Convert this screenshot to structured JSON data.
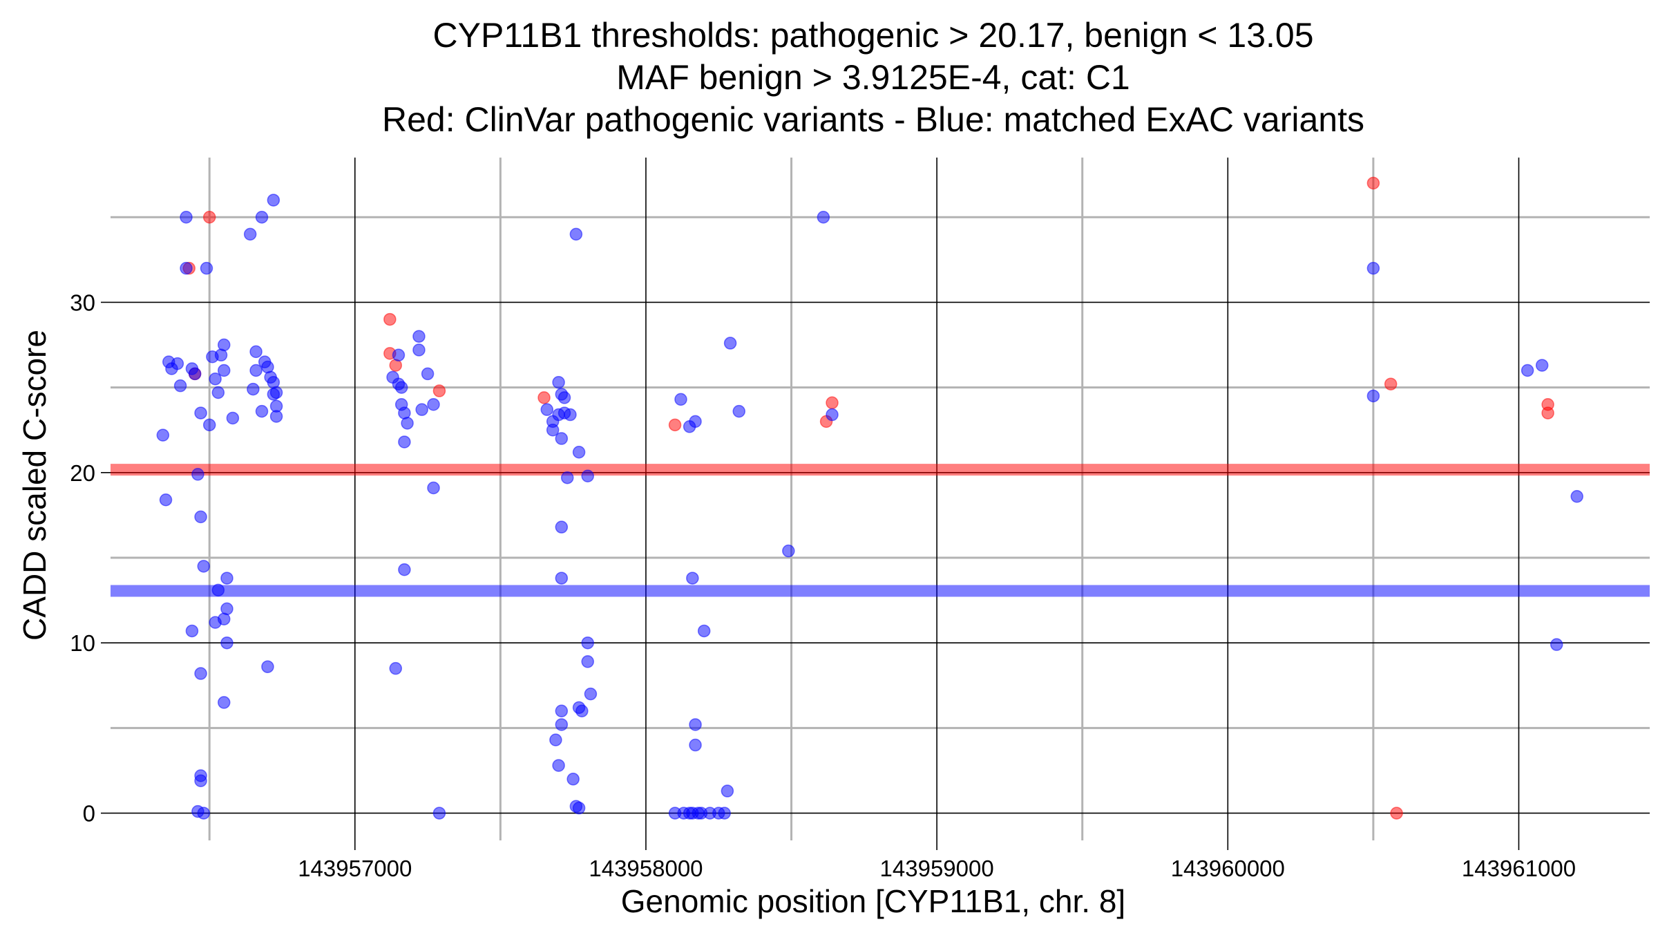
{
  "chart_data": {
    "type": "scatter",
    "title": [
      "CYP11B1 thresholds: pathogenic > 20.17, benign < 13.05",
      "MAF benign > 3.9125E-4, cat: C1",
      "Red: ClinVar pathogenic variants - Blue: matched ExAC variants"
    ],
    "xlabel": "Genomic position [CYP11B1, chr. 8]",
    "ylabel": "CADD scaled C-score",
    "xlim": [
      143956160,
      143961450
    ],
    "ylim": [
      -1.6,
      38.5
    ],
    "x_ticks": [
      143957000,
      143958000,
      143959000,
      143960000,
      143961000
    ],
    "x_tick_labels": [
      "143957000",
      "143958000",
      "143959000",
      "143960000",
      "143961000"
    ],
    "x_minor_ticks": [
      143956500,
      143957500,
      143958500,
      143959500,
      143960500
    ],
    "y_ticks": [
      0,
      10,
      20,
      30
    ],
    "y_tick_labels": [
      "0",
      "10",
      "20",
      "30"
    ],
    "y_minor_ticks": [
      5,
      15,
      25,
      35
    ],
    "grid": true,
    "colors": {
      "pathogenic": "#ff0000",
      "benign": "#0000ff",
      "major_grid": "#000000",
      "minor_grid": "#b3b3b3"
    },
    "thresholds": [
      {
        "series": "pathogenic",
        "value": 20.17
      },
      {
        "series": "benign",
        "value": 13.05
      }
    ],
    "series": [
      {
        "key": "pathogenic",
        "color": "#ff0000",
        "points": [
          [
            143956430,
            32
          ],
          [
            143956450,
            25.8
          ],
          [
            143956500,
            35
          ],
          [
            143957120,
            29
          ],
          [
            143957120,
            27
          ],
          [
            143957140,
            26.3
          ],
          [
            143957290,
            24.8
          ],
          [
            143957650,
            24.4
          ],
          [
            143958100,
            22.8
          ],
          [
            143958620,
            23
          ],
          [
            143958640,
            24.1
          ],
          [
            143960500,
            37
          ],
          [
            143960560,
            25.2
          ],
          [
            143960580,
            0
          ],
          [
            143961100,
            24
          ],
          [
            143961100,
            23.5
          ]
        ]
      },
      {
        "key": "benign",
        "color": "#0000ff",
        "points": [
          [
            143956420,
            35
          ],
          [
            143956420,
            32
          ],
          [
            143956490,
            32
          ],
          [
            143956640,
            34
          ],
          [
            143956680,
            35
          ],
          [
            143956720,
            36
          ],
          [
            143956360,
            26.5
          ],
          [
            143956370,
            26.1
          ],
          [
            143956390,
            26.4
          ],
          [
            143956400,
            25.1
          ],
          [
            143956440,
            26.1
          ],
          [
            143956450,
            25.8
          ],
          [
            143956460,
            19.9
          ],
          [
            143956470,
            23.5
          ],
          [
            143956500,
            22.8
          ],
          [
            143956510,
            26.8
          ],
          [
            143956520,
            25.5
          ],
          [
            143956530,
            24.7
          ],
          [
            143956540,
            26.9
          ],
          [
            143956550,
            26
          ],
          [
            143956550,
            27.5
          ],
          [
            143956580,
            23.2
          ],
          [
            143956650,
            24.9
          ],
          [
            143956660,
            27.1
          ],
          [
            143956660,
            26
          ],
          [
            143956680,
            23.6
          ],
          [
            143956690,
            26.5
          ],
          [
            143956700,
            26.2
          ],
          [
            143956710,
            25.6
          ],
          [
            143956720,
            25.3
          ],
          [
            143956720,
            24.6
          ],
          [
            143956730,
            24.7
          ],
          [
            143956730,
            23.9
          ],
          [
            143956730,
            23.3
          ],
          [
            143956340,
            22.2
          ],
          [
            143956350,
            18.4
          ],
          [
            143956470,
            17.4
          ],
          [
            143956480,
            14.5
          ],
          [
            143956530,
            13.1
          ],
          [
            143956560,
            13.8
          ],
          [
            143956520,
            11.2
          ],
          [
            143956550,
            11.4
          ],
          [
            143956560,
            12
          ],
          [
            143956440,
            10.7
          ],
          [
            143956560,
            10
          ],
          [
            143956470,
            8.2
          ],
          [
            143956700,
            8.6
          ],
          [
            143956550,
            6.5
          ],
          [
            143956470,
            2.2
          ],
          [
            143956470,
            1.9
          ],
          [
            143956460,
            0.1
          ],
          [
            143956480,
            0
          ],
          [
            143957130,
            25.6
          ],
          [
            143957150,
            26.9
          ],
          [
            143957150,
            25.2
          ],
          [
            143957160,
            25
          ],
          [
            143957160,
            24
          ],
          [
            143957170,
            23.5
          ],
          [
            143957170,
            21.8
          ],
          [
            143957180,
            22.9
          ],
          [
            143957220,
            28
          ],
          [
            143957220,
            27.2
          ],
          [
            143957230,
            23.7
          ],
          [
            143957250,
            25.8
          ],
          [
            143957270,
            24
          ],
          [
            143957270,
            19.1
          ],
          [
            143957170,
            14.3
          ],
          [
            143957140,
            8.5
          ],
          [
            143957290,
            0
          ],
          [
            143957660,
            23.7
          ],
          [
            143957680,
            23
          ],
          [
            143957680,
            22.5
          ],
          [
            143957700,
            25.3
          ],
          [
            143957700,
            23.4
          ],
          [
            143957710,
            22
          ],
          [
            143957710,
            24.6
          ],
          [
            143957720,
            24.4
          ],
          [
            143957720,
            23.5
          ],
          [
            143957740,
            23.4
          ],
          [
            143957760,
            34
          ],
          [
            143957770,
            21.2
          ],
          [
            143957730,
            19.7
          ],
          [
            143957800,
            19.8
          ],
          [
            143957710,
            16.8
          ],
          [
            143957710,
            13.8
          ],
          [
            143957800,
            10
          ],
          [
            143957800,
            8.9
          ],
          [
            143957810,
            7
          ],
          [
            143957710,
            5.2
          ],
          [
            143957710,
            6
          ],
          [
            143957770,
            6.2
          ],
          [
            143957780,
            6
          ],
          [
            143957690,
            4.3
          ],
          [
            143957700,
            2.8
          ],
          [
            143957750,
            2
          ],
          [
            143957760,
            0.4
          ],
          [
            143957770,
            0.3
          ],
          [
            143958120,
            24.3
          ],
          [
            143958150,
            22.7
          ],
          [
            143958170,
            23
          ],
          [
            143958290,
            27.6
          ],
          [
            143958320,
            23.6
          ],
          [
            143958160,
            13.8
          ],
          [
            143958200,
            10.7
          ],
          [
            143958170,
            5.2
          ],
          [
            143958170,
            4
          ],
          [
            143958280,
            1.3
          ],
          [
            143958100,
            0
          ],
          [
            143958130,
            0
          ],
          [
            143958150,
            0
          ],
          [
            143958160,
            0
          ],
          [
            143958180,
            0
          ],
          [
            143958190,
            0
          ],
          [
            143958220,
            0
          ],
          [
            143958250,
            0
          ],
          [
            143958270,
            0
          ],
          [
            143958490,
            15.4
          ],
          [
            143958610,
            35
          ],
          [
            143958640,
            23.4
          ],
          [
            143960500,
            32
          ],
          [
            143960500,
            24.5
          ],
          [
            143961030,
            26
          ],
          [
            143961080,
            26.3
          ],
          [
            143961200,
            18.6
          ],
          [
            143961130,
            9.9
          ]
        ]
      }
    ]
  }
}
